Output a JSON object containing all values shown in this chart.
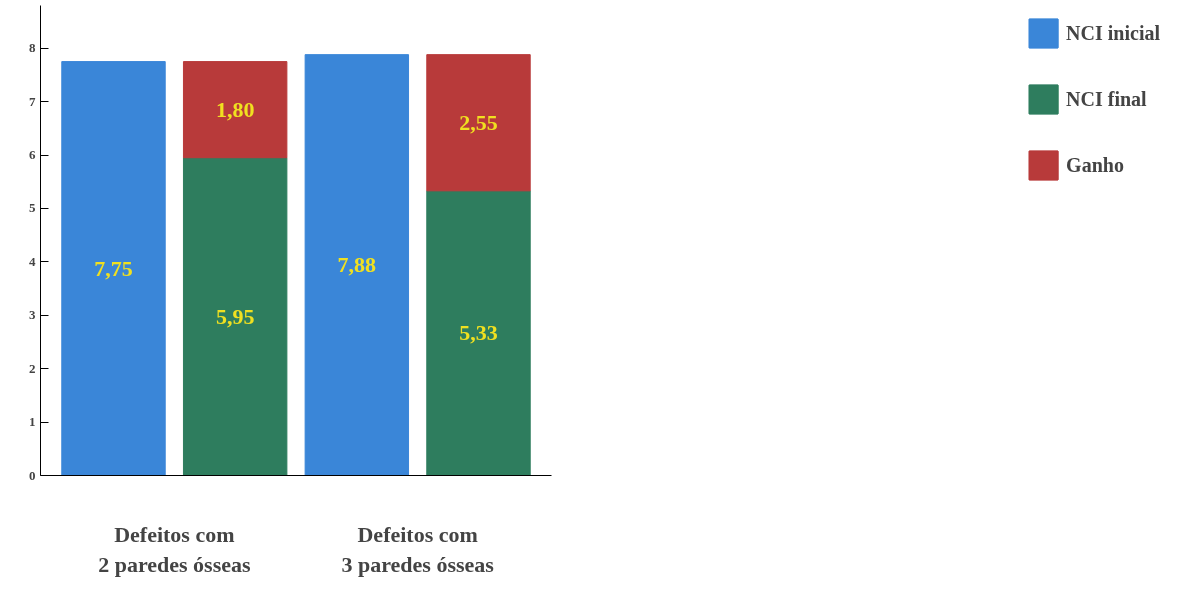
{
  "chart_data": {
    "type": "bar",
    "stacked": true,
    "categories": [
      null,
      null,
      null,
      null
    ],
    "series": [
      {
        "name": "NCI inicial",
        "color": "#3a86d8",
        "values": [
          7.75,
          null,
          7.88,
          null
        ],
        "value_labels": [
          "7,75",
          null,
          "7,88",
          null
        ]
      },
      {
        "name": "NCI final",
        "color": "#2e7d5e",
        "values": [
          null,
          5.95,
          null,
          5.33
        ],
        "value_labels": [
          null,
          "5,95",
          null,
          "5,33"
        ]
      },
      {
        "name": "Ganho",
        "color": "#b83a3a",
        "values": [
          null,
          1.8,
          null,
          2.55
        ],
        "value_labels": [
          null,
          "1,80",
          null,
          "2,55"
        ]
      }
    ],
    "annotations": [
      "Defeitos com\n2 paredes ósseas",
      "Defeitos com\n3 paredes ósseas"
    ],
    "ylim": [
      0,
      8.8
    ],
    "yticks": [
      0,
      1,
      2,
      3,
      4,
      5,
      6,
      7,
      8
    ],
    "grid": false,
    "legend": "right"
  }
}
